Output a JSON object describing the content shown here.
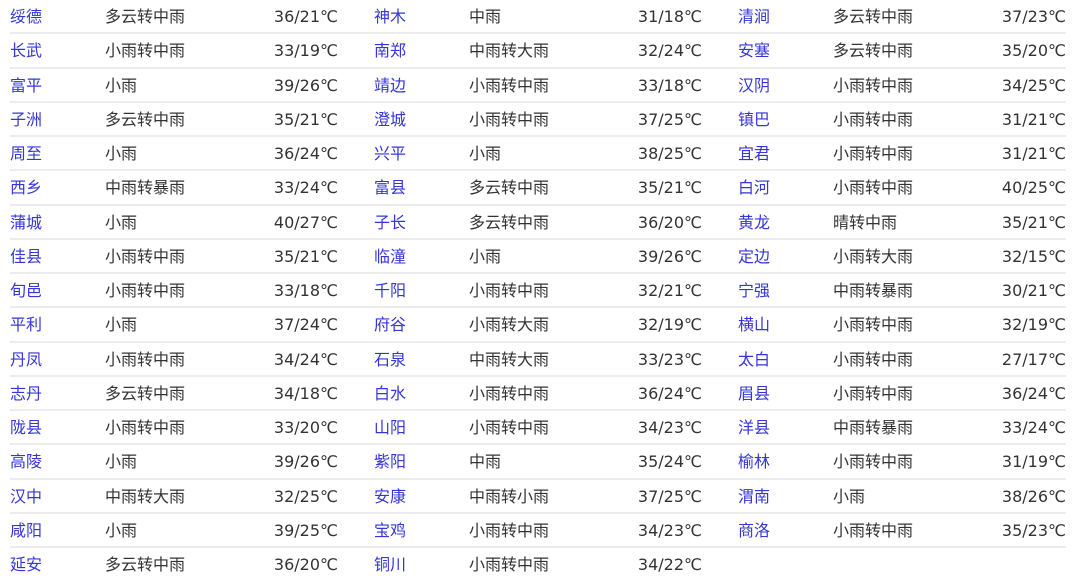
{
  "colors": {
    "city_link": "#3535d8",
    "text": "#333333",
    "divider": "#ececec"
  },
  "rows": [
    [
      [
        "绥德",
        "多云转中雨",
        "36/21℃"
      ],
      [
        "神木",
        "中雨",
        "31/18℃"
      ],
      [
        "清涧",
        "多云转中雨",
        "37/23℃"
      ]
    ],
    [
      [
        "长武",
        "小雨转中雨",
        "33/19℃"
      ],
      [
        "南郑",
        "中雨转大雨",
        "32/24℃"
      ],
      [
        "安塞",
        "多云转中雨",
        "35/20℃"
      ]
    ],
    [
      [
        "富平",
        "小雨",
        "39/26℃"
      ],
      [
        "靖边",
        "小雨转中雨",
        "33/18℃"
      ],
      [
        "汉阴",
        "小雨转中雨",
        "34/25℃"
      ]
    ],
    [
      [
        "子洲",
        "多云转中雨",
        "35/21℃"
      ],
      [
        "澄城",
        "小雨转中雨",
        "37/25℃"
      ],
      [
        "镇巴",
        "小雨转中雨",
        "31/21℃"
      ]
    ],
    [
      [
        "周至",
        "小雨",
        "36/24℃"
      ],
      [
        "兴平",
        "小雨",
        "38/25℃"
      ],
      [
        "宜君",
        "小雨转中雨",
        "31/21℃"
      ]
    ],
    [
      [
        "西乡",
        "中雨转暴雨",
        "33/24℃"
      ],
      [
        "富县",
        "多云转中雨",
        "35/21℃"
      ],
      [
        "白河",
        "小雨转中雨",
        "40/25℃"
      ]
    ],
    [
      [
        "蒲城",
        "小雨",
        "40/27℃"
      ],
      [
        "子长",
        "多云转中雨",
        "36/20℃"
      ],
      [
        "黄龙",
        "晴转中雨",
        "35/21℃"
      ]
    ],
    [
      [
        "佳县",
        "小雨转中雨",
        "35/21℃"
      ],
      [
        "临潼",
        "小雨",
        "39/26℃"
      ],
      [
        "定边",
        "小雨转大雨",
        "32/15℃"
      ]
    ],
    [
      [
        "旬邑",
        "小雨转中雨",
        "33/18℃"
      ],
      [
        "千阳",
        "小雨转中雨",
        "32/21℃"
      ],
      [
        "宁强",
        "中雨转暴雨",
        "30/21℃"
      ]
    ],
    [
      [
        "平利",
        "小雨",
        "37/24℃"
      ],
      [
        "府谷",
        "小雨转大雨",
        "32/19℃"
      ],
      [
        "横山",
        "小雨转中雨",
        "32/19℃"
      ]
    ],
    [
      [
        "丹凤",
        "小雨转中雨",
        "34/24℃"
      ],
      [
        "石泉",
        "中雨转大雨",
        "33/23℃"
      ],
      [
        "太白",
        "小雨转中雨",
        "27/17℃"
      ]
    ],
    [
      [
        "志丹",
        "多云转中雨",
        "34/18℃"
      ],
      [
        "白水",
        "小雨转中雨",
        "36/24℃"
      ],
      [
        "眉县",
        "小雨转中雨",
        "36/24℃"
      ]
    ],
    [
      [
        "陇县",
        "小雨转中雨",
        "33/20℃"
      ],
      [
        "山阳",
        "小雨转中雨",
        "34/23℃"
      ],
      [
        "洋县",
        "中雨转暴雨",
        "33/24℃"
      ]
    ],
    [
      [
        "高陵",
        "小雨",
        "39/26℃"
      ],
      [
        "紫阳",
        "中雨",
        "35/24℃"
      ],
      [
        "榆林",
        "小雨转中雨",
        "31/19℃"
      ]
    ],
    [
      [
        "汉中",
        "中雨转大雨",
        "32/25℃"
      ],
      [
        "安康",
        "中雨转小雨",
        "37/25℃"
      ],
      [
        "渭南",
        "小雨",
        "38/26℃"
      ]
    ],
    [
      [
        "咸阳",
        "小雨",
        "39/25℃"
      ],
      [
        "宝鸡",
        "小雨转中雨",
        "34/23℃"
      ],
      [
        "商洛",
        "小雨转中雨",
        "35/23℃"
      ]
    ],
    [
      [
        "延安",
        "多云转中雨",
        "36/20℃"
      ],
      [
        "铜川",
        "小雨转中雨",
        "34/22℃"
      ]
    ]
  ]
}
